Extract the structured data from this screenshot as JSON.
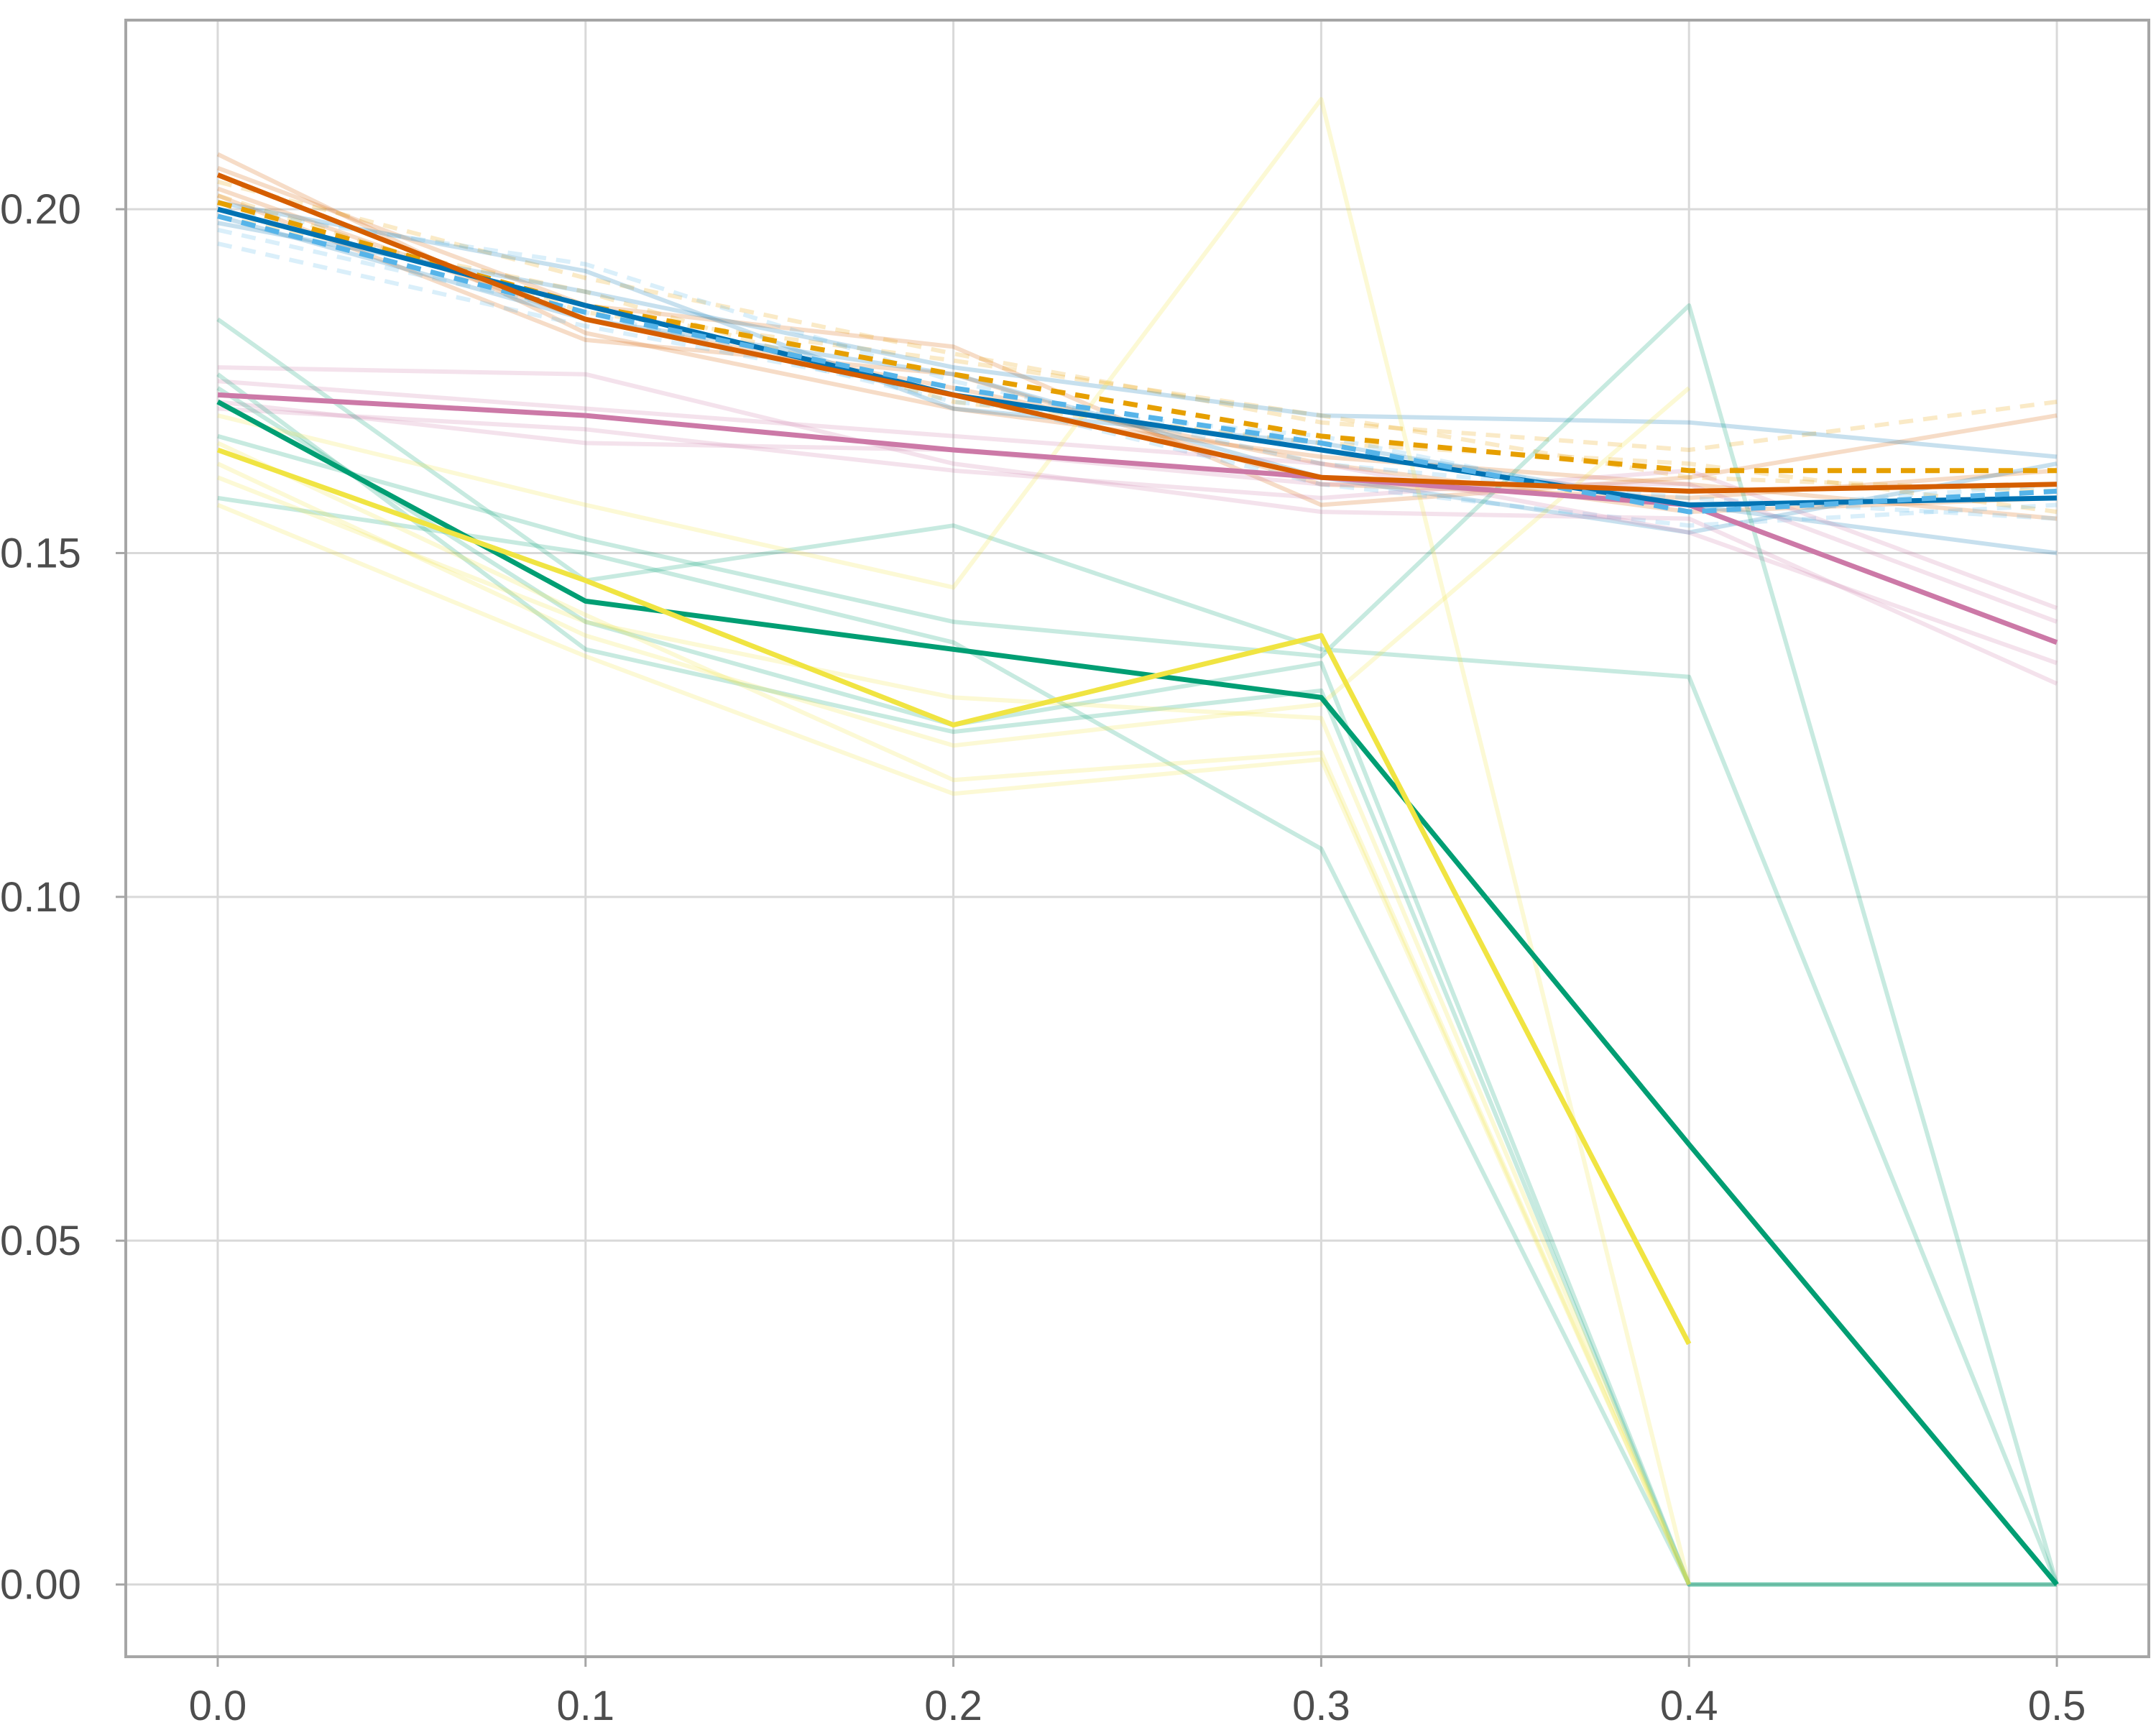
{
  "chart_data": {
    "type": "line",
    "title": "",
    "xlabel": "",
    "ylabel": "",
    "x": [
      0.0,
      0.1,
      0.2,
      0.3,
      0.4,
      0.5
    ],
    "xlim": [
      -0.025,
      0.525
    ],
    "ylim": [
      -0.0105,
      0.2275
    ],
    "x_ticks": [
      0.0,
      0.1,
      0.2,
      0.3,
      0.4,
      0.5
    ],
    "x_tick_labels": [
      "0.0",
      "0.1",
      "0.2",
      "0.3",
      "0.4",
      "0.5"
    ],
    "y_ticks": [
      0.0,
      0.05,
      0.1,
      0.15,
      0.2
    ],
    "y_tick_labels": [
      "0.00",
      "0.05",
      "0.10",
      "0.15",
      "0.20"
    ],
    "grid": true,
    "legend": "none",
    "colors": {
      "vermillion": "#D55E00",
      "blue": "#0072B2",
      "orange": "#E69F00",
      "sky_blue": "#56B4E9",
      "reddish_purple": "#CC79A7",
      "green": "#009E73",
      "yellow": "#F0E442",
      "grid": "#d9d9d9",
      "frame": "#a6a6a6"
    },
    "faint_series": [
      {
        "color": "#D55E00",
        "dash": false,
        "values": [
          0.208,
          0.182,
          0.171,
          0.164,
          0.16,
          0.155
        ]
      },
      {
        "color": "#D55E00",
        "dash": false,
        "values": [
          0.206,
          0.186,
          0.18,
          0.157,
          0.161,
          0.17
        ]
      },
      {
        "color": "#D55E00",
        "dash": false,
        "values": [
          0.203,
          0.184,
          0.174,
          0.163,
          0.156,
          0.158
        ]
      },
      {
        "color": "#D55E00",
        "dash": false,
        "values": [
          0.202,
          0.181,
          0.176,
          0.16,
          0.158,
          0.162
        ]
      },
      {
        "color": "#E69F00",
        "dash": true,
        "values": [
          0.204,
          0.19,
          0.179,
          0.169,
          0.165,
          0.172
        ]
      },
      {
        "color": "#E69F00",
        "dash": true,
        "values": [
          0.199,
          0.188,
          0.172,
          0.166,
          0.163,
          0.156
        ]
      },
      {
        "color": "#E69F00",
        "dash": true,
        "values": [
          0.202,
          0.185,
          0.178,
          0.17,
          0.161,
          0.159
        ]
      },
      {
        "color": "#0072B2",
        "dash": false,
        "values": [
          0.201,
          0.191,
          0.171,
          0.166,
          0.157,
          0.15
        ]
      },
      {
        "color": "#0072B2",
        "dash": false,
        "values": [
          0.199,
          0.184,
          0.176,
          0.161,
          0.153,
          0.163
        ]
      },
      {
        "color": "#0072B2",
        "dash": false,
        "values": [
          0.198,
          0.188,
          0.177,
          0.17,
          0.169,
          0.164
        ]
      },
      {
        "color": "#56B4E9",
        "dash": true,
        "values": [
          0.195,
          0.183,
          0.173,
          0.16,
          0.154,
          0.157
        ]
      },
      {
        "color": "#56B4E9",
        "dash": true,
        "values": [
          0.2,
          0.192,
          0.175,
          0.163,
          0.158,
          0.155
        ]
      },
      {
        "color": "#56B4E9",
        "dash": true,
        "values": [
          0.197,
          0.185,
          0.172,
          0.167,
          0.156,
          0.16
        ]
      },
      {
        "color": "#CC79A7",
        "dash": false,
        "values": [
          0.177,
          0.176,
          0.163,
          0.156,
          0.155,
          0.131
        ]
      },
      {
        "color": "#CC79A7",
        "dash": false,
        "values": [
          0.175,
          0.171,
          0.167,
          0.163,
          0.153,
          0.134
        ]
      },
      {
        "color": "#CC79A7",
        "dash": false,
        "values": [
          0.172,
          0.166,
          0.165,
          0.16,
          0.16,
          0.14
        ]
      },
      {
        "color": "#CC79A7",
        "dash": false,
        "values": [
          0.171,
          0.168,
          0.162,
          0.158,
          0.162,
          0.142
        ]
      },
      {
        "color": "#009E73",
        "dash": false,
        "values": [
          0.184,
          0.146,
          0.154,
          0.136,
          0.132,
          0.0
        ]
      },
      {
        "color": "#009E73",
        "dash": false,
        "values": [
          0.176,
          0.136,
          0.124,
          0.13,
          0.0,
          0.0
        ]
      },
      {
        "color": "#009E73",
        "dash": false,
        "values": [
          0.167,
          0.152,
          0.14,
          0.135,
          0.186,
          0.0
        ]
      },
      {
        "color": "#009E73",
        "dash": false,
        "values": [
          0.158,
          0.15,
          0.137,
          0.107,
          0.0,
          0.0
        ]
      },
      {
        "color": "#009E73",
        "dash": false,
        "values": [
          0.174,
          0.14,
          0.125,
          0.134,
          0.0,
          0.0
        ]
      },
      {
        "color": "#F0E442",
        "dash": false,
        "values": [
          0.17,
          0.157,
          0.145,
          0.216,
          0.0,
          null
        ]
      },
      {
        "color": "#F0E442",
        "dash": false,
        "values": [
          0.163,
          0.138,
          0.122,
          0.128,
          0.174,
          null
        ]
      },
      {
        "color": "#F0E442",
        "dash": false,
        "values": [
          0.157,
          0.135,
          0.115,
          0.12,
          0.0,
          null
        ]
      },
      {
        "color": "#F0E442",
        "dash": false,
        "values": [
          0.166,
          0.141,
          0.117,
          0.121,
          0.0,
          null
        ]
      },
      {
        "color": "#F0E442",
        "dash": false,
        "values": [
          0.161,
          0.14,
          0.129,
          0.126,
          0.0,
          null
        ]
      }
    ],
    "series": [
      {
        "color": "#009E73",
        "dash": false,
        "values": [
          0.172,
          0.143,
          0.136,
          0.129,
          0.064,
          0.0
        ]
      },
      {
        "color": "#F0E442",
        "dash": false,
        "values": [
          0.165,
          0.146,
          0.125,
          0.138,
          0.035,
          null
        ]
      },
      {
        "color": "#CC79A7",
        "dash": false,
        "values": [
          0.173,
          0.17,
          0.165,
          0.161,
          0.157,
          0.137
        ]
      },
      {
        "color": "#E69F00",
        "dash": true,
        "values": [
          0.201,
          0.186,
          0.176,
          0.167,
          0.162,
          0.162
        ]
      },
      {
        "color": "#0072B2",
        "dash": false,
        "values": [
          0.2,
          0.186,
          0.173,
          0.165,
          0.157,
          0.158
        ]
      },
      {
        "color": "#56B4E9",
        "dash": true,
        "values": [
          0.199,
          0.185,
          0.174,
          0.166,
          0.156,
          0.159
        ]
      },
      {
        "color": "#D55E00",
        "dash": false,
        "values": [
          0.205,
          0.184,
          0.173,
          0.161,
          0.159,
          0.16
        ]
      }
    ]
  }
}
